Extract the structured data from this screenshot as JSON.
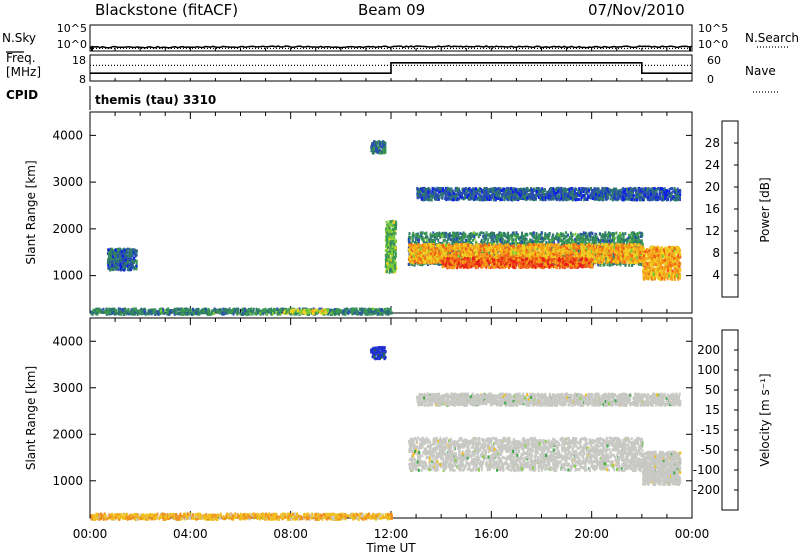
{
  "header": {
    "title": "Blackstone (fitACF)",
    "beam": "Beam 09",
    "date": "07/Nov/2010"
  },
  "colors": {
    "background": "#ffffff",
    "axis": "#000000",
    "ground_scatter_gray": "#c8c8c4"
  },
  "chart_data": [
    {
      "type": "line",
      "panel": "sky-noise",
      "left_label": "N.Sky",
      "right_label": "N.Search",
      "left_ticks": [
        "10^5",
        "10^0"
      ],
      "right_ticks": [
        "10^5",
        "10^0"
      ],
      "x": [
        "00:00",
        "02:00",
        "04:00",
        "06:00",
        "08:00",
        "10:00",
        "12:00",
        "14:00",
        "16:00",
        "18:00",
        "20:00",
        "22:00",
        "24:00"
      ],
      "series": [
        {
          "name": "N.Sky",
          "values": [
            0.15,
            0.14,
            0.15,
            0.16,
            0.17,
            0.15,
            0.16,
            0.18,
            0.17,
            0.16,
            0.15,
            0.17,
            0.16
          ],
          "style": "solid"
        },
        {
          "name": "N.Search",
          "values": [
            0.1,
            0.1,
            0.1,
            0.1,
            0.1,
            0.1,
            0.1,
            0.1,
            0.1,
            0.1,
            0.1,
            0.1,
            0.1
          ],
          "style": "dotted"
        }
      ]
    },
    {
      "type": "line",
      "panel": "frequency",
      "left_label_lines": [
        "Freq.",
        "[MHz]"
      ],
      "left_sublabel": "CPID",
      "right_label": "Nave",
      "left_ticks": [
        18,
        8
      ],
      "right_ticks": [
        60,
        0
      ],
      "series": [
        {
          "name": "Freq.",
          "x": [
            "00:00",
            "12:00",
            "12:00",
            "22:00",
            "22:00",
            "24:00"
          ],
          "values": [
            11,
            11,
            15,
            15,
            11,
            11
          ],
          "style": "solid"
        },
        {
          "name": "Nave",
          "x": [
            "00:00",
            "24:00"
          ],
          "values": [
            14,
            14
          ],
          "style": "dotted"
        }
      ]
    },
    {
      "type": "heatmap",
      "panel": "power",
      "cpid_label": "themis (tau) 3310",
      "ylabel": "Slant Range [km]",
      "yticks": [
        1000,
        2000,
        3000,
        4000
      ],
      "ylim": [
        200,
        4500
      ],
      "xlim": [
        "00:00",
        "24:00"
      ],
      "colorbar": {
        "label": "Power [dB]",
        "ticks": [
          4,
          8,
          12,
          16,
          20,
          24,
          28
        ],
        "range": [
          0,
          32
        ],
        "colors": [
          "#0f1fe8",
          "#2a4fb0",
          "#2f7a6a",
          "#3a9a50",
          "#7dcc3a",
          "#f0d020",
          "#f5a018",
          "#f06018",
          "#e82018"
        ]
      },
      "regions": [
        {
          "x_start": "00:00",
          "x_end": "12:00",
          "range_start": 200,
          "range_end": 320,
          "level": 10
        },
        {
          "x_start": "07:40",
          "x_end": "09:30",
          "range_start": 220,
          "range_end": 300,
          "level": 18
        },
        {
          "x_start": "00:40",
          "x_end": "01:50",
          "range_start": 1150,
          "range_end": 1600,
          "level": 7
        },
        {
          "x_start": "11:10",
          "x_end": "11:45",
          "range_start": 3650,
          "range_end": 3900,
          "level": 8
        },
        {
          "x_start": "11:45",
          "x_end": "12:10",
          "range_start": 1100,
          "range_end": 2200,
          "level": 14
        },
        {
          "x_start": "12:40",
          "x_end": "22:00",
          "range_start": 1250,
          "range_end": 1950,
          "level": 10
        },
        {
          "x_start": "12:40",
          "x_end": "22:00",
          "range_start": 1300,
          "range_end": 1700,
          "level": 22
        },
        {
          "x_start": "14:00",
          "x_end": "20:00",
          "range_start": 1200,
          "range_end": 1400,
          "level": 27
        },
        {
          "x_start": "22:00",
          "x_end": "23:30",
          "range_start": 950,
          "range_end": 1650,
          "level": 22
        },
        {
          "x_start": "13:00",
          "x_end": "23:30",
          "range_start": 2650,
          "range_end": 2900,
          "level": 6
        }
      ]
    },
    {
      "type": "heatmap",
      "panel": "velocity",
      "ylabel": "Slant Range [km]",
      "yticks": [
        1000,
        2000,
        3000,
        4000
      ],
      "ylim": [
        200,
        4500
      ],
      "xlim": [
        "00:00",
        "24:00"
      ],
      "xticks": [
        "00:00",
        "04:00",
        "08:00",
        "12:00",
        "16:00",
        "20:00",
        "00:00"
      ],
      "xlabel": "Time UT",
      "colorbar": {
        "label": "Velocity [m s⁻¹]",
        "ticks": [
          "200",
          "100",
          "50",
          "15",
          "-15",
          "-50",
          "-100",
          "-200"
        ],
        "colors": [
          "#2030d0",
          "#287838",
          "#3ca848",
          "#84d040",
          "#c8c8c4",
          "#f0c020",
          "#f09020",
          "#f05018",
          "#e81818"
        ]
      },
      "regions": [
        {
          "x_start": "00:00",
          "x_end": "12:00",
          "range_start": 200,
          "range_end": 320,
          "velocity": -40
        },
        {
          "x_start": "11:10",
          "x_end": "11:45",
          "range_start": 3650,
          "range_end": 3900,
          "velocity": 220
        },
        {
          "x_start": "12:40",
          "x_end": "22:00",
          "range_start": 1250,
          "range_end": 1950,
          "velocity": 0,
          "ground_scatter": true
        },
        {
          "x_start": "22:00",
          "x_end": "23:30",
          "range_start": 950,
          "range_end": 1650,
          "velocity": 0,
          "ground_scatter": true
        },
        {
          "x_start": "13:00",
          "x_end": "23:30",
          "range_start": 2650,
          "range_end": 2900,
          "velocity": 0,
          "ground_scatter": true
        }
      ]
    }
  ]
}
